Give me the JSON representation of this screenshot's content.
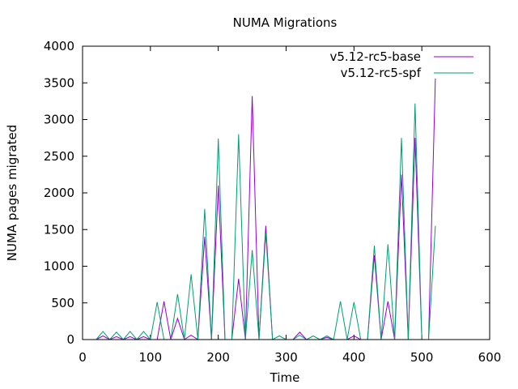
{
  "chart_data": {
    "type": "line",
    "title": "NUMA Migrations",
    "xlabel": "Time",
    "ylabel": "NUMA pages migrated",
    "xlim": [
      0,
      600
    ],
    "ylim": [
      0,
      4000
    ],
    "xticks": [
      0,
      100,
      200,
      300,
      400,
      500,
      600
    ],
    "yticks": [
      0,
      500,
      1000,
      1500,
      2000,
      2500,
      3000,
      3500,
      4000
    ],
    "grid": false,
    "legend_position": "top-right",
    "series": [
      {
        "name": "v5.12-rc5-base",
        "color": "#9400d3",
        "x": [
          20,
          30,
          40,
          50,
          60,
          70,
          80,
          90,
          100,
          110,
          120,
          130,
          140,
          150,
          160,
          170,
          180,
          190,
          200,
          210,
          220,
          230,
          240,
          250,
          260,
          270,
          280,
          290,
          300,
          310,
          320,
          330,
          340,
          350,
          360,
          370,
          380,
          390,
          400,
          410,
          420,
          430,
          440,
          450,
          460,
          470,
          480,
          490,
          500,
          510,
          520
        ],
        "y": [
          0,
          50,
          0,
          40,
          0,
          40,
          0,
          40,
          0,
          0,
          520,
          0,
          290,
          0,
          60,
          0,
          1400,
          0,
          2100,
          0,
          0,
          830,
          0,
          3320,
          0,
          1550,
          0,
          0,
          0,
          0,
          100,
          0,
          0,
          0,
          30,
          0,
          0,
          0,
          50,
          0,
          0,
          1150,
          0,
          520,
          0,
          2250,
          0,
          2750,
          0,
          0,
          3560
        ]
      },
      {
        "name": "v5.12-rc5-spf",
        "color": "#009e73",
        "x": [
          20,
          30,
          40,
          50,
          60,
          70,
          80,
          90,
          100,
          110,
          120,
          130,
          140,
          150,
          160,
          170,
          180,
          190,
          200,
          210,
          220,
          230,
          240,
          250,
          260,
          270,
          280,
          290,
          300,
          310,
          320,
          330,
          340,
          350,
          360,
          370,
          380,
          390,
          400,
          410,
          420,
          430,
          440,
          450,
          460,
          470,
          480,
          490,
          500,
          510,
          520
        ],
        "y": [
          0,
          110,
          0,
          100,
          0,
          110,
          0,
          110,
          0,
          510,
          0,
          0,
          620,
          0,
          890,
          0,
          1780,
          0,
          2740,
          0,
          0,
          2800,
          0,
          1220,
          0,
          1450,
          0,
          50,
          0,
          0,
          60,
          0,
          50,
          0,
          50,
          0,
          520,
          0,
          510,
          0,
          0,
          1280,
          0,
          1300,
          0,
          2750,
          0,
          3220,
          0,
          0,
          1550
        ]
      }
    ]
  }
}
